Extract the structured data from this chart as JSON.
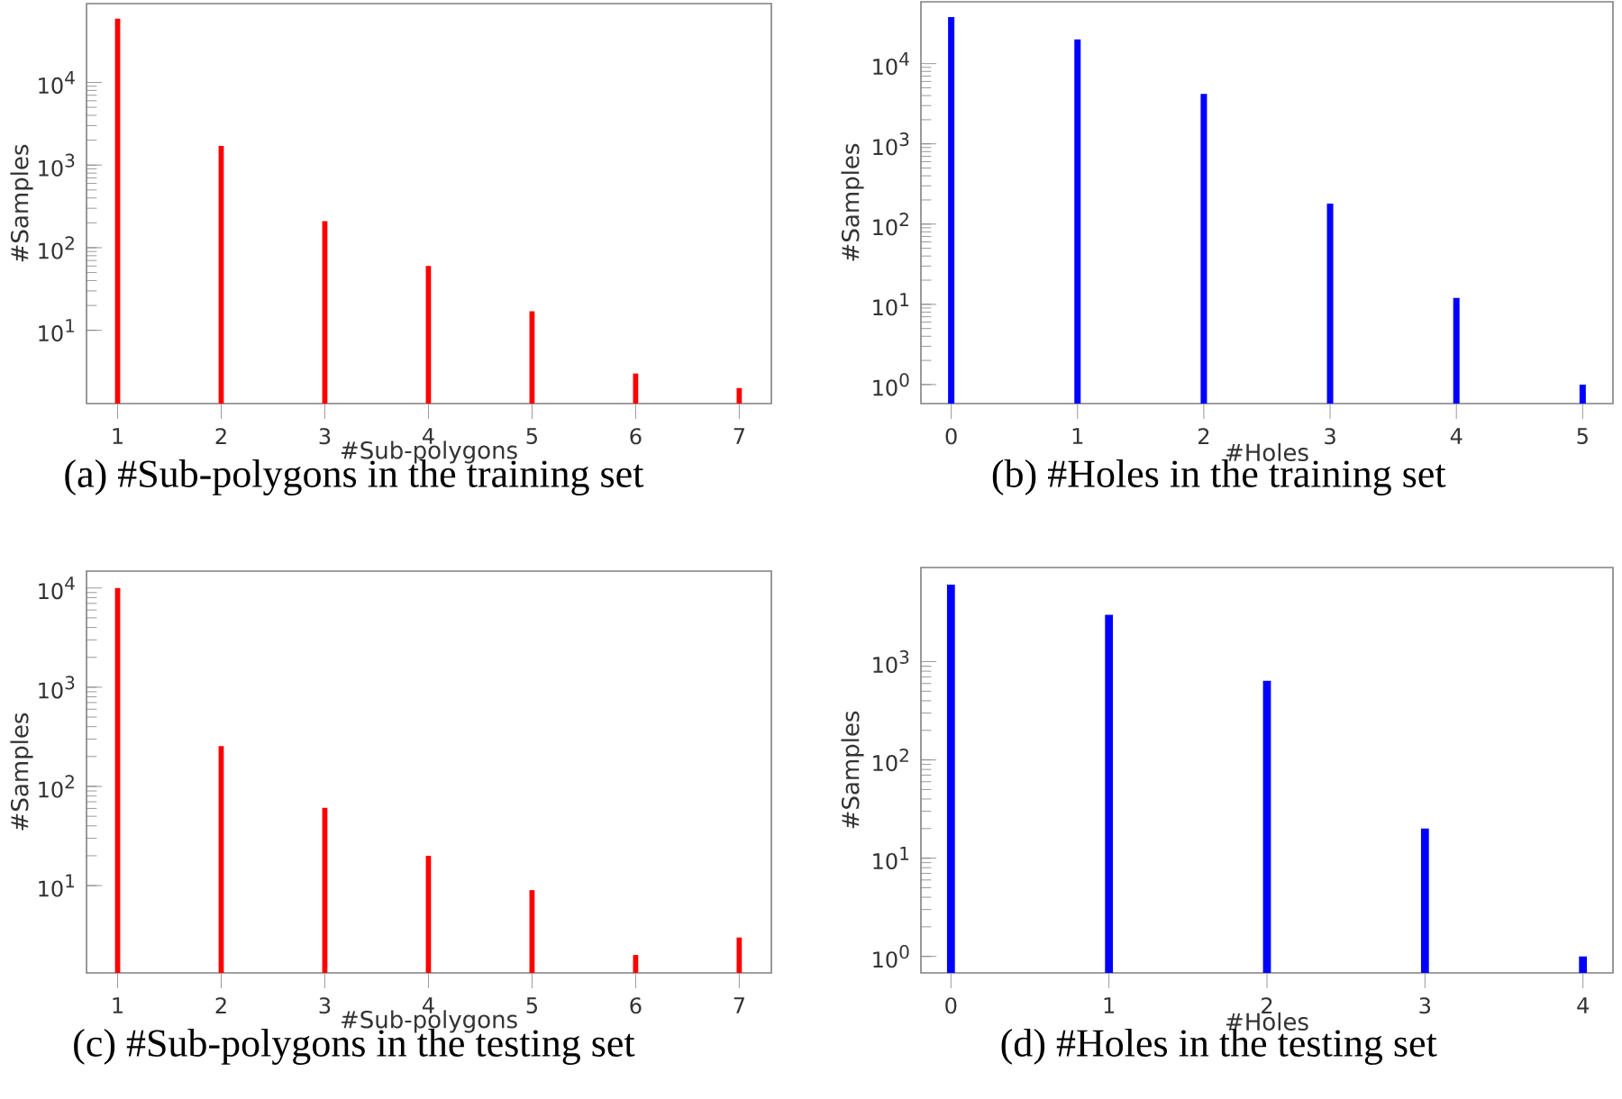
{
  "chart_data": [
    {
      "type": "bar",
      "title": "(a) #Sub-polygons in the training set",
      "xlabel": "#Sub-polygons",
      "ylabel": "#Samples",
      "color": "#ff0000",
      "log": true,
      "x": [
        1,
        2,
        3,
        4,
        5,
        6,
        7
      ],
      "values": [
        59000,
        1700,
        210,
        60,
        17,
        3,
        2
      ],
      "xlim": [
        0.7,
        7.31
      ],
      "xticks": [
        1,
        2,
        3,
        4,
        5,
        6,
        7
      ],
      "ylim": [
        1.3,
        90000
      ],
      "yticks": [
        {
          "value": 10,
          "label": "10$^{1}$"
        },
        {
          "value": 100,
          "label": "10$^{2}$"
        },
        {
          "value": 1000,
          "label": "10$^{3}$"
        },
        {
          "value": 10000,
          "label": "10$^{4}$"
        }
      ]
    },
    {
      "type": "bar",
      "title": "(b) #Holes in the training set",
      "xlabel": "#Holes",
      "ylabel": "#Samples",
      "color": "#0000ff",
      "log": true,
      "x": [
        0,
        1,
        2,
        3,
        4,
        5
      ],
      "values": [
        38000,
        20000,
        4200,
        180,
        12,
        1
      ],
      "xlim": [
        -0.24,
        5.24
      ],
      "xticks": [
        0,
        1,
        2,
        3,
        4,
        5
      ],
      "ylim": [
        0.58,
        59000
      ],
      "yticks": [
        {
          "value": 1,
          "label": "10$^{0}$"
        },
        {
          "value": 10,
          "label": "10$^{1}$"
        },
        {
          "value": 100,
          "label": "10$^{2}$"
        },
        {
          "value": 1000,
          "label": "10$^{3}$"
        },
        {
          "value": 10000,
          "label": "10$^{4}$"
        }
      ]
    },
    {
      "type": "bar",
      "title": "(c) #Sub-polygons in the testing set",
      "xlabel": "#Sub-polygons",
      "ylabel": "#Samples",
      "color": "#ff0000",
      "log": true,
      "x": [
        1,
        2,
        3,
        4,
        5,
        6,
        7
      ],
      "values": [
        10000,
        255,
        61,
        20,
        9,
        2,
        3
      ],
      "xlim": [
        0.7,
        7.31
      ],
      "xticks": [
        1,
        2,
        3,
        4,
        5,
        6,
        7
      ],
      "ylim": [
        1.32,
        14800
      ],
      "yticks": [
        {
          "value": 10,
          "label": "10$^{1}$"
        },
        {
          "value": 100,
          "label": "10$^{2}$"
        },
        {
          "value": 1000,
          "label": "10$^{3}$"
        },
        {
          "value": 10000,
          "label": "10$^{4}$"
        }
      ]
    },
    {
      "type": "bar",
      "title": "(d) #Holes in the testing set",
      "xlabel": "#Holes",
      "ylabel": "#Samples",
      "color": "#0000ff",
      "log": true,
      "x": [
        0,
        1,
        2,
        3,
        4
      ],
      "values": [
        6100,
        3000,
        640,
        20,
        1
      ],
      "xlim": [
        -0.19,
        4.19
      ],
      "xticks": [
        0,
        1,
        2,
        3,
        4
      ],
      "ylim": [
        0.68,
        9100
      ],
      "yticks": [
        {
          "value": 1,
          "label": "10$^{0}$"
        },
        {
          "value": 10,
          "label": "10$^{1}$"
        },
        {
          "value": 100,
          "label": "10$^{2}$"
        },
        {
          "value": 1000,
          "label": "10$^{3}$"
        }
      ]
    }
  ]
}
